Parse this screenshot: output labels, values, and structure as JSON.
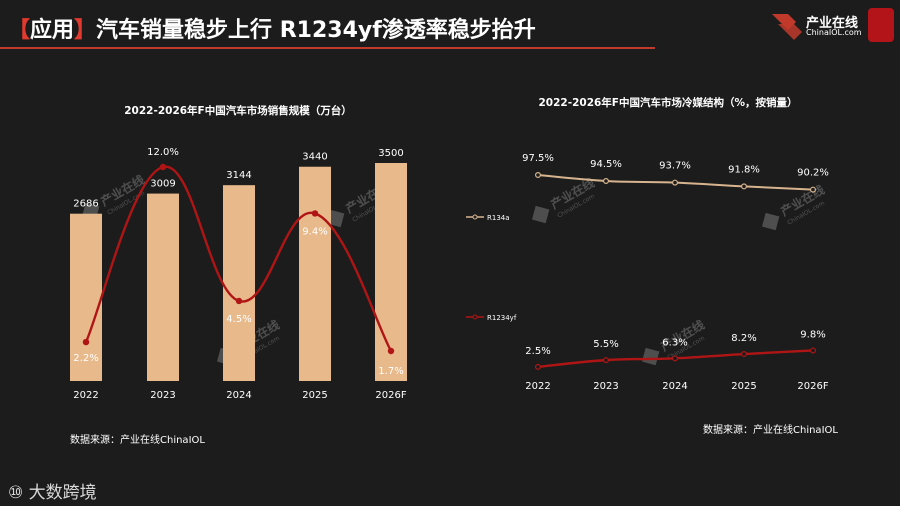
{
  "header": {
    "bracket_open": "【",
    "tag": "应用",
    "bracket_close": "】",
    "title": "汽车销量稳步上行 R1234yf渗透率稳步抬升"
  },
  "logo": {
    "brand": "产业在线",
    "url": "ChinaIOL.com"
  },
  "footer": {
    "brand": "大数跨境"
  },
  "colors": {
    "accent_red": "#c0392b",
    "bar": "#e8b98b",
    "line_red": "#b01515",
    "line_tan": "#d7b48f"
  },
  "watermark": {
    "text": "产业在线",
    "url": "ChinaIOL.com"
  },
  "chart_data": [
    {
      "type": "bar",
      "title": "2022-2026年F中国汽车市场销售规模（万台）",
      "categories": [
        "2022",
        "2023",
        "2024",
        "2025",
        "2026F"
      ],
      "series": [
        {
          "values": [
            2686,
            3009,
            3144,
            3440,
            3500
          ],
          "labels": [
            "2686",
            "3009",
            "3144",
            "3440",
            "3500"
          ]
        },
        {
          "values": [
            2.2,
            12.0,
            4.5,
            9.4,
            1.7
          ],
          "labels": [
            "2.2%",
            "12.0%",
            "4.5%",
            "9.4%",
            "1.7%"
          ]
        }
      ],
      "source": "数据来源：产业在线ChinaIOL"
    },
    {
      "type": "line",
      "title": "2022-2026年F中国汽车市场冷媒结构（%，按销量）",
      "categories": [
        "2022",
        "2023",
        "2024",
        "2025",
        "2026F"
      ],
      "series": [
        {
          "name": "R134a",
          "values": [
            97.5,
            94.5,
            93.7,
            91.8,
            90.2
          ],
          "labels": [
            "97.5%",
            "94.5%",
            "93.7%",
            "91.8%",
            "90.2%"
          ]
        },
        {
          "name": "R1234yf",
          "values": [
            2.5,
            5.5,
            6.3,
            8.2,
            9.8
          ],
          "labels": [
            "2.5%",
            "5.5%",
            "6.3%",
            "8.2%",
            "9.8%"
          ]
        }
      ],
      "source": "数据来源：产业在线ChinaIOL"
    }
  ]
}
